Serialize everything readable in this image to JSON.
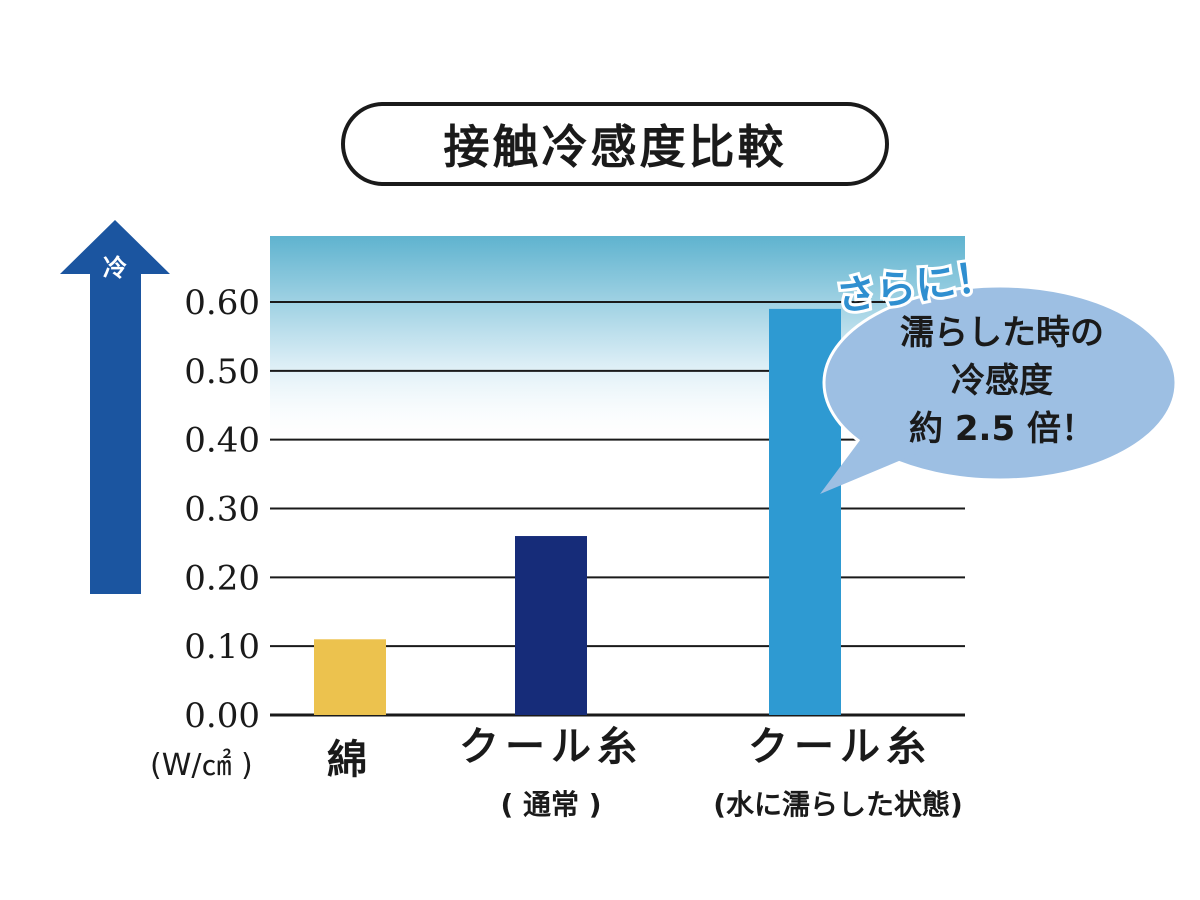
{
  "title": "接触冷感度比較",
  "arrow_label": "冷",
  "unit": "(W/㎠ )",
  "chart_data": {
    "type": "bar",
    "title": "接触冷感度比較",
    "xlabel": "",
    "ylabel": "冷",
    "categories": [
      "綿",
      "クール糸",
      "クール糸"
    ],
    "sublabels": [
      "",
      "( 通常 )",
      "(水に濡らした状態)"
    ],
    "values": [
      0.11,
      0.26,
      0.59
    ],
    "colors": [
      "#ecc24e",
      "#162c79",
      "#2e9ad2"
    ],
    "ylim": [
      0,
      0.6
    ],
    "yticks": [
      "0.00",
      "0.10",
      "0.20",
      "0.30",
      "0.40",
      "0.50",
      "0.60"
    ],
    "grid": true
  },
  "callout": {
    "exclaim": "さらに！",
    "lines": [
      "濡らした時の",
      "冷感度",
      "約 2.5 倍！"
    ]
  },
  "colors": {
    "arrow": "#1b55a0",
    "gradient_top": "#5fb3cf",
    "bubble": "#9dbfe3",
    "exclaim": "#2f8fd0"
  }
}
